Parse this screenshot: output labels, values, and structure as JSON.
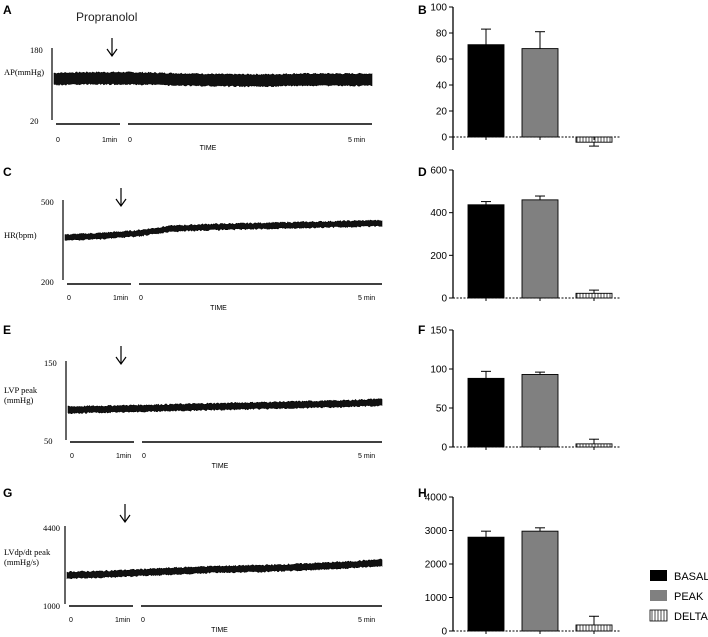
{
  "drug_label": "Propranolol",
  "legend": [
    {
      "name": "BASAL",
      "color": "#000000"
    },
    {
      "name": "PEAK",
      "color": "#808080"
    },
    {
      "name": "DELTA",
      "color": "#ffffff"
    }
  ],
  "traces": [
    {
      "panel": "A",
      "ylabel": [
        "AP(mmHg)"
      ],
      "ymax": "180",
      "ymin": "20",
      "time_labels": [
        "0",
        "1min",
        "0",
        "5 min"
      ],
      "xlabel": "TIME",
      "trend": [
        0.57,
        0.58,
        0.58,
        0.57,
        0.56,
        0.55,
        0.55,
        0.56,
        0.56,
        0.56
      ],
      "band": 0.14
    },
    {
      "panel": "C",
      "ylabel": [
        "HR(bpm)"
      ],
      "ymax": "500",
      "ymin": "200",
      "time_labels": [
        "0",
        "1min",
        "0",
        "5 min"
      ],
      "xlabel": "TIME",
      "trend": [
        0.53,
        0.55,
        0.58,
        0.64,
        0.66,
        0.67,
        0.68,
        0.69,
        0.7,
        0.71
      ],
      "band": 0.05
    },
    {
      "panel": "E",
      "ylabel": [
        "LVP peak",
        "(mmHg)"
      ],
      "ymax": "150",
      "ymin": "50",
      "time_labels": [
        "0",
        "1min",
        "0",
        "5 min"
      ],
      "xlabel": "TIME",
      "trend": [
        0.38,
        0.39,
        0.4,
        0.41,
        0.42,
        0.43,
        0.44,
        0.45,
        0.46,
        0.48
      ],
      "band": 0.06
    },
    {
      "panel": "G",
      "ylabel": [
        "LVdp/dt peak",
        "(mmHg/s)"
      ],
      "ymax": "4400",
      "ymin": "1000",
      "time_labels": [
        "0",
        "1min",
        "0",
        "5 min"
      ],
      "xlabel": "TIME",
      "trend": [
        0.37,
        0.38,
        0.4,
        0.42,
        0.44,
        0.45,
        0.46,
        0.48,
        0.5,
        0.53
      ],
      "band": 0.06
    }
  ],
  "chart_data": [
    {
      "panel": "B",
      "type": "bar",
      "categories": [
        "BASAL",
        "PEAK",
        "DELTA"
      ],
      "values": [
        71,
        68,
        -4
      ],
      "errors": [
        12,
        13,
        3
      ],
      "ylim": [
        -10,
        100
      ],
      "yticks": [
        0,
        20,
        40,
        60,
        80,
        100
      ]
    },
    {
      "panel": "D",
      "type": "bar",
      "categories": [
        "BASAL",
        "PEAK",
        "DELTA"
      ],
      "values": [
        437,
        460,
        22
      ],
      "errors": [
        15,
        18,
        15
      ],
      "ylim": [
        0,
        600
      ],
      "yticks": [
        0,
        200,
        400,
        600
      ]
    },
    {
      "panel": "F",
      "type": "bar",
      "categories": [
        "BASAL",
        "PEAK",
        "DELTA"
      ],
      "values": [
        88,
        93,
        4
      ],
      "errors": [
        9,
        3,
        6
      ],
      "ylim": [
        0,
        150
      ],
      "yticks": [
        0,
        50,
        100,
        150
      ]
    },
    {
      "panel": "H",
      "type": "bar",
      "categories": [
        "BASAL",
        "PEAK",
        "DELTA"
      ],
      "values": [
        2800,
        2980,
        180
      ],
      "errors": [
        180,
        100,
        260
      ],
      "ylim": [
        0,
        4000
      ],
      "yticks": [
        0,
        1000,
        2000,
        3000,
        4000
      ]
    }
  ]
}
